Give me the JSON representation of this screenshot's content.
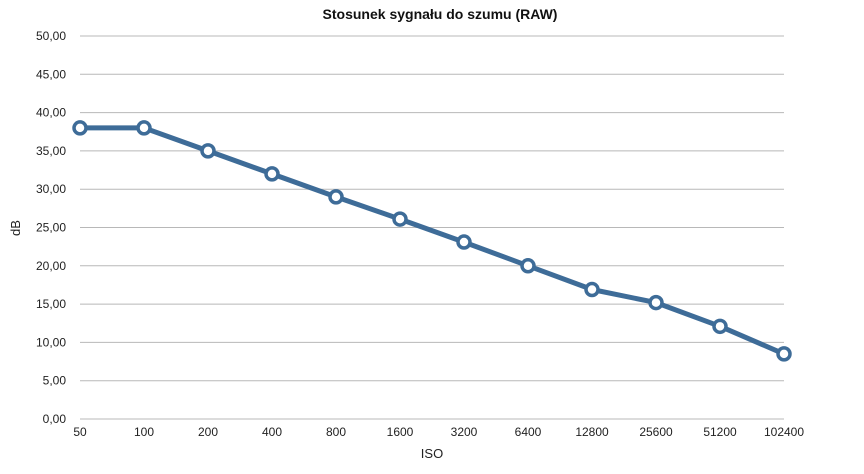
{
  "chart_data": {
    "type": "line",
    "title": "Stosunek sygnału do szumu (RAW)",
    "xlabel": "ISO",
    "ylabel": "dB",
    "categories": [
      "50",
      "100",
      "200",
      "400",
      "800",
      "1600",
      "3200",
      "6400",
      "12800",
      "25600",
      "51200",
      "102400"
    ],
    "series": [
      {
        "values": [
          38.0,
          38.0,
          35.0,
          32.0,
          29.0,
          26.1,
          23.1,
          20.0,
          16.9,
          15.2,
          12.1,
          8.5
        ]
      }
    ],
    "ylim": [
      0,
      50
    ],
    "yticks": [
      "0,00",
      "5,00",
      "10,00",
      "15,00",
      "20,00",
      "25,00",
      "30,00",
      "35,00",
      "40,00",
      "45,00",
      "50,00"
    ],
    "grid": true,
    "legend": "none",
    "colors": {
      "line": "#3e6c98",
      "marker_fill": "#ffffff",
      "grid": "#b8b8b8"
    }
  }
}
